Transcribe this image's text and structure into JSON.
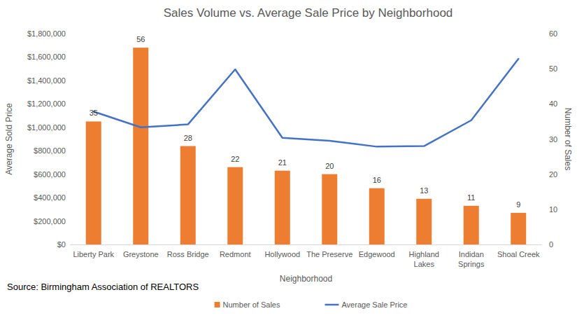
{
  "chart_data": {
    "type": "combo",
    "title": "Sales Volume vs. Average Sale Price by Neighborhood",
    "x_label": "Neighborhood",
    "y_label": "Average Sold Price",
    "y2_label": "Number of Sales",
    "annotations": [
      "Source: Birmingham Association of REALTORS"
    ],
    "categories": [
      "Liberty Park",
      "Greystone",
      "Ross Bridge",
      "Redmont",
      "Hollywood",
      "The Preserve",
      "Edgewood",
      "Highland Lakes",
      "Indidan Springs",
      "Shoal Creek"
    ],
    "series": [
      {
        "name": "Number of Sales",
        "type": "bar",
        "axis": "y2",
        "color": "#ed7d31",
        "data_labels": true,
        "values": [
          35,
          56,
          28,
          22,
          21,
          20,
          16,
          13,
          11,
          9
        ]
      },
      {
        "name": "Average Sale Price",
        "type": "line",
        "axis": "y",
        "color": "#4472c4",
        "values": [
          1135000,
          1000000,
          1025000,
          1495000,
          910000,
          885000,
          835000,
          840000,
          1060000,
          1585000
        ]
      }
    ],
    "ylim": [
      0,
      1800000
    ],
    "yticks": [
      {
        "value": 0,
        "label": "$0"
      },
      {
        "value": 200000,
        "label": "$200,000"
      },
      {
        "value": 400000,
        "label": "$400,000"
      },
      {
        "value": 600000,
        "label": "$600,000"
      },
      {
        "value": 800000,
        "label": "$800,000"
      },
      {
        "value": 1000000,
        "label": "$1,000,000"
      },
      {
        "value": 1200000,
        "label": "$1,200,000"
      },
      {
        "value": 1400000,
        "label": "$1,400,000"
      },
      {
        "value": 1600000,
        "label": "$1,600,000"
      },
      {
        "value": 1800000,
        "label": "$1,800,000"
      }
    ],
    "y2lim": [
      0,
      60
    ],
    "y2ticks": [
      0,
      10,
      20,
      30,
      40,
      50,
      60
    ],
    "grid": false,
    "legend": "bottom"
  }
}
